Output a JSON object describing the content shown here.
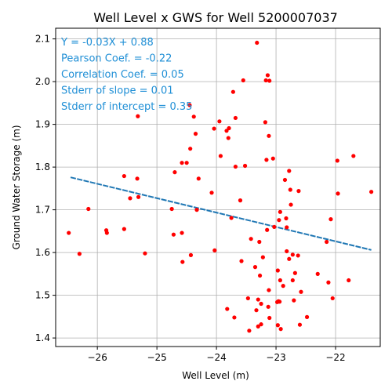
{
  "chart_data": {
    "type": "scatter",
    "title": "Well Level x GWS for Well 5200007037",
    "xlabel": "Well Level (m)",
    "ylabel": "Ground Water Storage (m)",
    "xlim": [
      -26.7,
      -21.25
    ],
    "ylim": [
      1.38,
      2.125
    ],
    "x_ticks": [
      -26,
      -25,
      -24,
      -23,
      -22
    ],
    "y_ticks": [
      1.4,
      1.5,
      1.6,
      1.7,
      1.8,
      1.9,
      2.0,
      2.1
    ],
    "grid": true,
    "point_color": "#ff0000",
    "line_color": "#1f77b4",
    "annotation_color": "#1f8fd6",
    "regression": {
      "slope": -0.03,
      "intercept": 0.88,
      "x_range": [
        -26.45,
        -21.4
      ]
    },
    "annotations": [
      "Y = -0.03X + 0.88",
      "Pearson Coef. = -0.22",
      "Correlation Coef. = 0.05",
      "Stderr of slope = 0.01",
      "Stderr of intercept = 0.35"
    ],
    "points": [
      [
        -26.48,
        1.646
      ],
      [
        -26.3,
        1.597
      ],
      [
        -26.15,
        1.702
      ],
      [
        -25.85,
        1.652
      ],
      [
        -25.84,
        1.646
      ],
      [
        -25.55,
        1.779
      ],
      [
        -25.55,
        1.655
      ],
      [
        -25.45,
        1.727
      ],
      [
        -25.33,
        1.773
      ],
      [
        -25.32,
        1.919
      ],
      [
        -25.31,
        1.73
      ],
      [
        -25.2,
        1.598
      ],
      [
        -24.75,
        1.702
      ],
      [
        -24.72,
        1.642
      ],
      [
        -24.7,
        1.788
      ],
      [
        -24.58,
        1.81
      ],
      [
        -24.58,
        1.646
      ],
      [
        -24.57,
        1.578
      ],
      [
        -24.5,
        1.81
      ],
      [
        -24.45,
        1.945
      ],
      [
        -24.44,
        1.843
      ],
      [
        -24.43,
        1.594
      ],
      [
        -24.38,
        1.918
      ],
      [
        -24.35,
        1.878
      ],
      [
        -24.33,
        1.7
      ],
      [
        -24.3,
        1.773
      ],
      [
        -24.08,
        1.74
      ],
      [
        -24.04,
        1.89
      ],
      [
        -24.03,
        1.605
      ],
      [
        -23.95,
        1.907
      ],
      [
        -23.93,
        1.826
      ],
      [
        -23.83,
        1.885
      ],
      [
        -23.82,
        1.468
      ],
      [
        -23.8,
        1.868
      ],
      [
        -23.79,
        1.891
      ],
      [
        -23.75,
        1.681
      ],
      [
        -23.72,
        1.976
      ],
      [
        -23.7,
        1.448
      ],
      [
        -23.68,
        1.915
      ],
      [
        -23.68,
        1.801
      ],
      [
        -23.6,
        1.722
      ],
      [
        -23.58,
        1.58
      ],
      [
        -23.55,
        2.003
      ],
      [
        -23.52,
        1.803
      ],
      [
        -23.47,
        1.493
      ],
      [
        -23.45,
        1.417
      ],
      [
        -23.42,
        1.632
      ],
      [
        -23.35,
        1.566
      ],
      [
        -23.33,
        1.465
      ],
      [
        -23.32,
        2.091
      ],
      [
        -23.3,
        1.49
      ],
      [
        -23.3,
        1.427
      ],
      [
        -23.28,
        1.625
      ],
      [
        -23.27,
        1.546
      ],
      [
        -23.25,
        1.48
      ],
      [
        -23.25,
        1.432
      ],
      [
        -23.22,
        1.589
      ],
      [
        -23.18,
        1.905
      ],
      [
        -23.17,
        2.003
      ],
      [
        -23.16,
        1.817
      ],
      [
        -23.15,
        1.653
      ],
      [
        -23.14,
        2.015
      ],
      [
        -23.13,
        1.473
      ],
      [
        -23.12,
        1.873
      ],
      [
        -23.12,
        1.512
      ],
      [
        -23.11,
        2.002
      ],
      [
        -23.11,
        1.447
      ],
      [
        -23.05,
        1.82
      ],
      [
        -23.03,
        1.66
      ],
      [
        -22.98,
        1.484
      ],
      [
        -22.97,
        1.558
      ],
      [
        -22.97,
        1.43
      ],
      [
        -22.96,
        1.486
      ],
      [
        -22.95,
        1.676
      ],
      [
        -22.94,
        1.485
      ],
      [
        -22.93,
        1.695
      ],
      [
        -22.93,
        1.535
      ],
      [
        -22.92,
        1.421
      ],
      [
        -22.88,
        1.522
      ],
      [
        -22.85,
        1.77
      ],
      [
        -22.83,
        1.68
      ],
      [
        -22.82,
        1.603
      ],
      [
        -22.82,
        1.659
      ],
      [
        -22.78,
        1.791
      ],
      [
        -22.78,
        1.585
      ],
      [
        -22.76,
        1.747
      ],
      [
        -22.75,
        1.712
      ],
      [
        -22.72,
        1.595
      ],
      [
        -22.72,
        1.535
      ],
      [
        -22.7,
        1.488
      ],
      [
        -22.68,
        1.552
      ],
      [
        -22.63,
        1.593
      ],
      [
        -22.62,
        1.744
      ],
      [
        -22.6,
        1.431
      ],
      [
        -22.58,
        1.508
      ],
      [
        -22.48,
        1.449
      ],
      [
        -22.3,
        1.55
      ],
      [
        -22.15,
        1.625
      ],
      [
        -22.12,
        1.53
      ],
      [
        -22.08,
        1.678
      ],
      [
        -22.05,
        1.493
      ],
      [
        -21.97,
        1.815
      ],
      [
        -21.96,
        1.738
      ],
      [
        -21.78,
        1.535
      ],
      [
        -21.7,
        1.826
      ],
      [
        -21.4,
        1.742
      ]
    ]
  }
}
